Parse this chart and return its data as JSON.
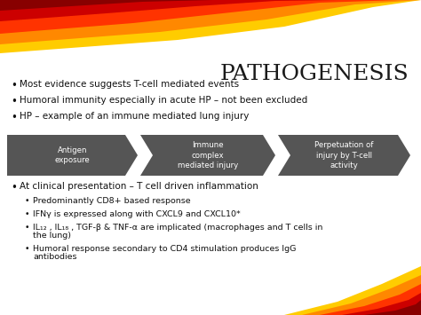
{
  "title": "PATHOGENESIS",
  "bg_color": "#ffffff",
  "title_color": "#1a1a1a",
  "title_fontsize": 18,
  "bullet_color": "#111111",
  "bullet_fontsize": 7.5,
  "sub_bullet_fontsize": 6.8,
  "arrow_color": "#555555",
  "arrow_text_color": "#ffffff",
  "arrow_labels": [
    "Antigen\nexposure",
    "Immune\ncomplex\nmediated injury",
    "Perpetuation of\ninjury by T-cell\nactivity"
  ],
  "top_bullets": [
    "Most evidence suggests T-cell mediated events",
    "Humoral immunity especially in acute HP – not been excluded",
    "HP – example of an immune mediated lung injury"
  ],
  "bottom_main": "At clinical presentation – T cell driven inflammation",
  "bottom_subs": [
    "Predominantly CD8+ based response",
    "IFNγ is expressed along with CXCL9 and CXCL10*",
    "IL₁₂ , IL₁₈ , TGF-β & TNF-α are implicated (macrophages and T cells in the lung)",
    "Humoral response secondary to CD4 stimulation produces IgG antibodies"
  ],
  "figure_width": 4.74,
  "figure_height": 3.55,
  "dpi": 100
}
